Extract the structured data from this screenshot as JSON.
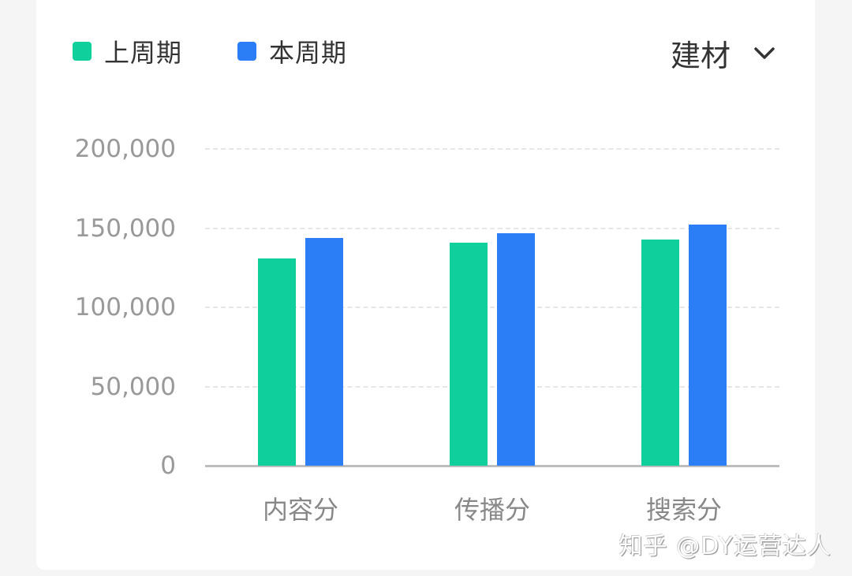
{
  "legend": [
    {
      "label": "上周期",
      "color": "#0fcf9c"
    },
    {
      "label": "本周期",
      "color": "#2b7ef5"
    }
  ],
  "filter": {
    "selected": "建材",
    "icon": "chevron-down-icon"
  },
  "chart_data": {
    "type": "bar",
    "title": "",
    "xlabel": "",
    "ylabel": "",
    "categories": [
      "内容分",
      "传播分",
      "搜索分"
    ],
    "series": [
      {
        "name": "上周期",
        "color": "#0fcf9c",
        "values": [
          131000,
          141000,
          143000
        ]
      },
      {
        "name": "本周期",
        "color": "#2b7ef5",
        "values": [
          144000,
          147000,
          152000
        ]
      }
    ],
    "yticks": [
      "0",
      "50,000",
      "100,000",
      "150,000",
      "200,000"
    ],
    "ylim": [
      0,
      200000
    ],
    "grid": true,
    "legend_position": "top-left"
  },
  "watermark": "知乎 @DY运营达人"
}
